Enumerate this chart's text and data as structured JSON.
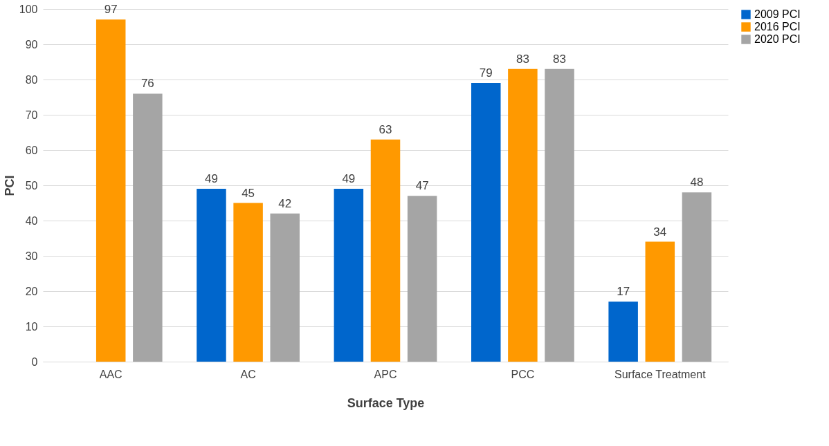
{
  "chart_data": {
    "type": "bar",
    "xlabel": "Surface Type",
    "ylabel": "PCI",
    "categories": [
      "AAC",
      "AC",
      "APC",
      "PCC",
      "Surface Treatment"
    ],
    "series": [
      {
        "name": "2009 PCI",
        "color": "#0066cc",
        "values": [
          null,
          49,
          49,
          79,
          17
        ]
      },
      {
        "name": "2016 PCI",
        "color": "#ff9900",
        "values": [
          97,
          45,
          63,
          83,
          34
        ]
      },
      {
        "name": "2020 PCI",
        "color": "#a5a5a5",
        "values": [
          76,
          42,
          47,
          83,
          48
        ]
      }
    ],
    "ylim": [
      0,
      100
    ],
    "yticks": [
      0,
      10,
      20,
      30,
      40,
      50,
      60,
      70,
      80,
      90,
      100
    ],
    "grid": "y",
    "legend": "right",
    "data_labels": true
  }
}
